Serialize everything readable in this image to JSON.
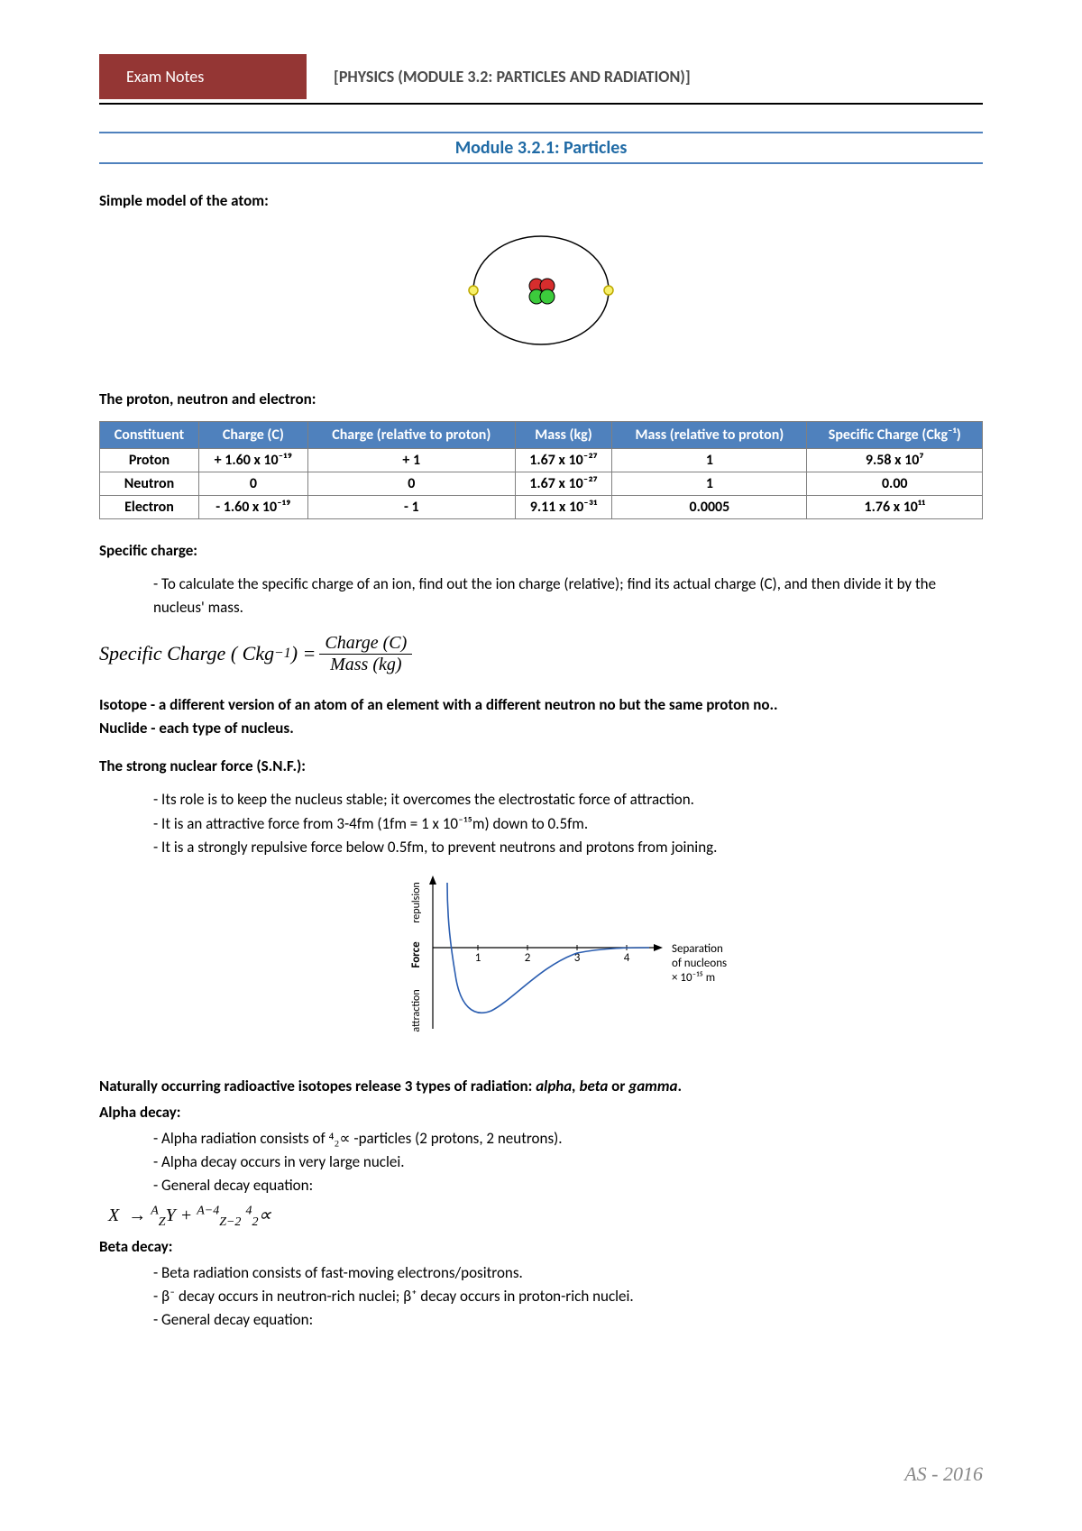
{
  "header": {
    "left_label": "Exam Notes",
    "title": "[PHYSICS (MODULE 3.2: PARTICLES AND RADIATION)]"
  },
  "module_title": "Module 3.2.1: Particles",
  "sections": {
    "atom_label": "Simple model of the atom:",
    "pne_label": "The proton, neutron and electron:",
    "specific_charge_label": "Specific charge:",
    "specific_charge_text": "- To calculate the specific charge of an ion, find out the ion charge (relative); find its actual charge (C), and then divide it by the nucleus' mass.",
    "formula_left": "Specific Charge ( Ckg",
    "formula_exp": "−1",
    "formula_close": " ) =",
    "formula_num": "Charge (C)",
    "formula_den": "Mass (kg)",
    "isotope_text": "Isotope - a different version of an atom of an element with a different neutron no but the same proton no..",
    "nuclide_text": "Nuclide - each type of nucleus.",
    "snf_label": "The strong nuclear force (S.N.F.):",
    "snf_bullets": [
      "- Its role is to keep the nucleus stable; it overcomes the electrostatic force of attraction.",
      "- It is an attractive force from 3-4fm (1fm = 1 x 10⁻¹⁵m) down to 0.5fm.",
      "- It is a strongly repulsive force below 0.5fm, to prevent neutrons and protons from joining."
    ],
    "radiation_intro": "Naturally occurring radioactive isotopes release 3 types of radiation: alpha, beta or gamma.",
    "alpha_label": "Alpha decay:",
    "alpha_bullets": {
      "b1_pre": "- Alpha radiation consists of   ",
      "b1_mid": "⁴₂∝",
      "b1_post": "   -particles (2 protons, 2 neutrons).",
      "b2": "- Alpha decay occurs in very large nuclei.",
      "b3": "- General decay equation:"
    },
    "alpha_eq": "X  → ᴬ₂Y + ᴬ⁻⁴₍z₋₂₎  ⁴₂∝",
    "beta_label": "Beta decay:",
    "beta_bullets": [
      "- Beta radiation consists of fast-moving electrons/positrons.",
      "- β⁻ decay occurs in neutron-rich nuclei; β⁺ decay occurs in proton-rich nuclei.",
      "- General decay equation:"
    ]
  },
  "particle_table": {
    "headers": [
      "Constituent",
      "Charge (C)",
      "Charge (relative to proton)",
      "Mass (kg)",
      "Mass (relative to proton)",
      "Specific Charge (Ckg⁻¹)"
    ],
    "rows": [
      [
        "Proton",
        "+ 1.60 x 10⁻¹⁹",
        "+ 1",
        "1.67 x 10⁻²⁷",
        "1",
        "9.58 x 10⁷"
      ],
      [
        "Neutron",
        "0",
        "0",
        "1.67 x 10⁻²⁷",
        "1",
        "0.00"
      ],
      [
        "Electron",
        "- 1.60 x 10⁻¹⁹",
        "- 1",
        "9.11 x 10⁻³¹",
        "0.0005",
        "1.76 x 10¹¹"
      ]
    ]
  },
  "atom_diagram": {
    "orbit_color": "#000000",
    "proton_color": "#d62d2d",
    "neutron_color": "#3ccb3c",
    "electron_fill": "#f7f06a",
    "electron_stroke": "#bca800",
    "particle_border": "#000000"
  },
  "snf_graph": {
    "axis_color": "#000000",
    "curve_color": "#2a5db0",
    "text_color": "#000000",
    "xticks": [
      "1",
      "2",
      "3",
      "4"
    ],
    "ylabel_top": "repulsion",
    "ylabel_mid": "Force",
    "ylabel_bot": "attraction",
    "xlabel1": "Separation",
    "xlabel2": "of nucleons",
    "xlabel3": "× 10⁻¹⁵ m"
  },
  "footer": "AS - 2016"
}
